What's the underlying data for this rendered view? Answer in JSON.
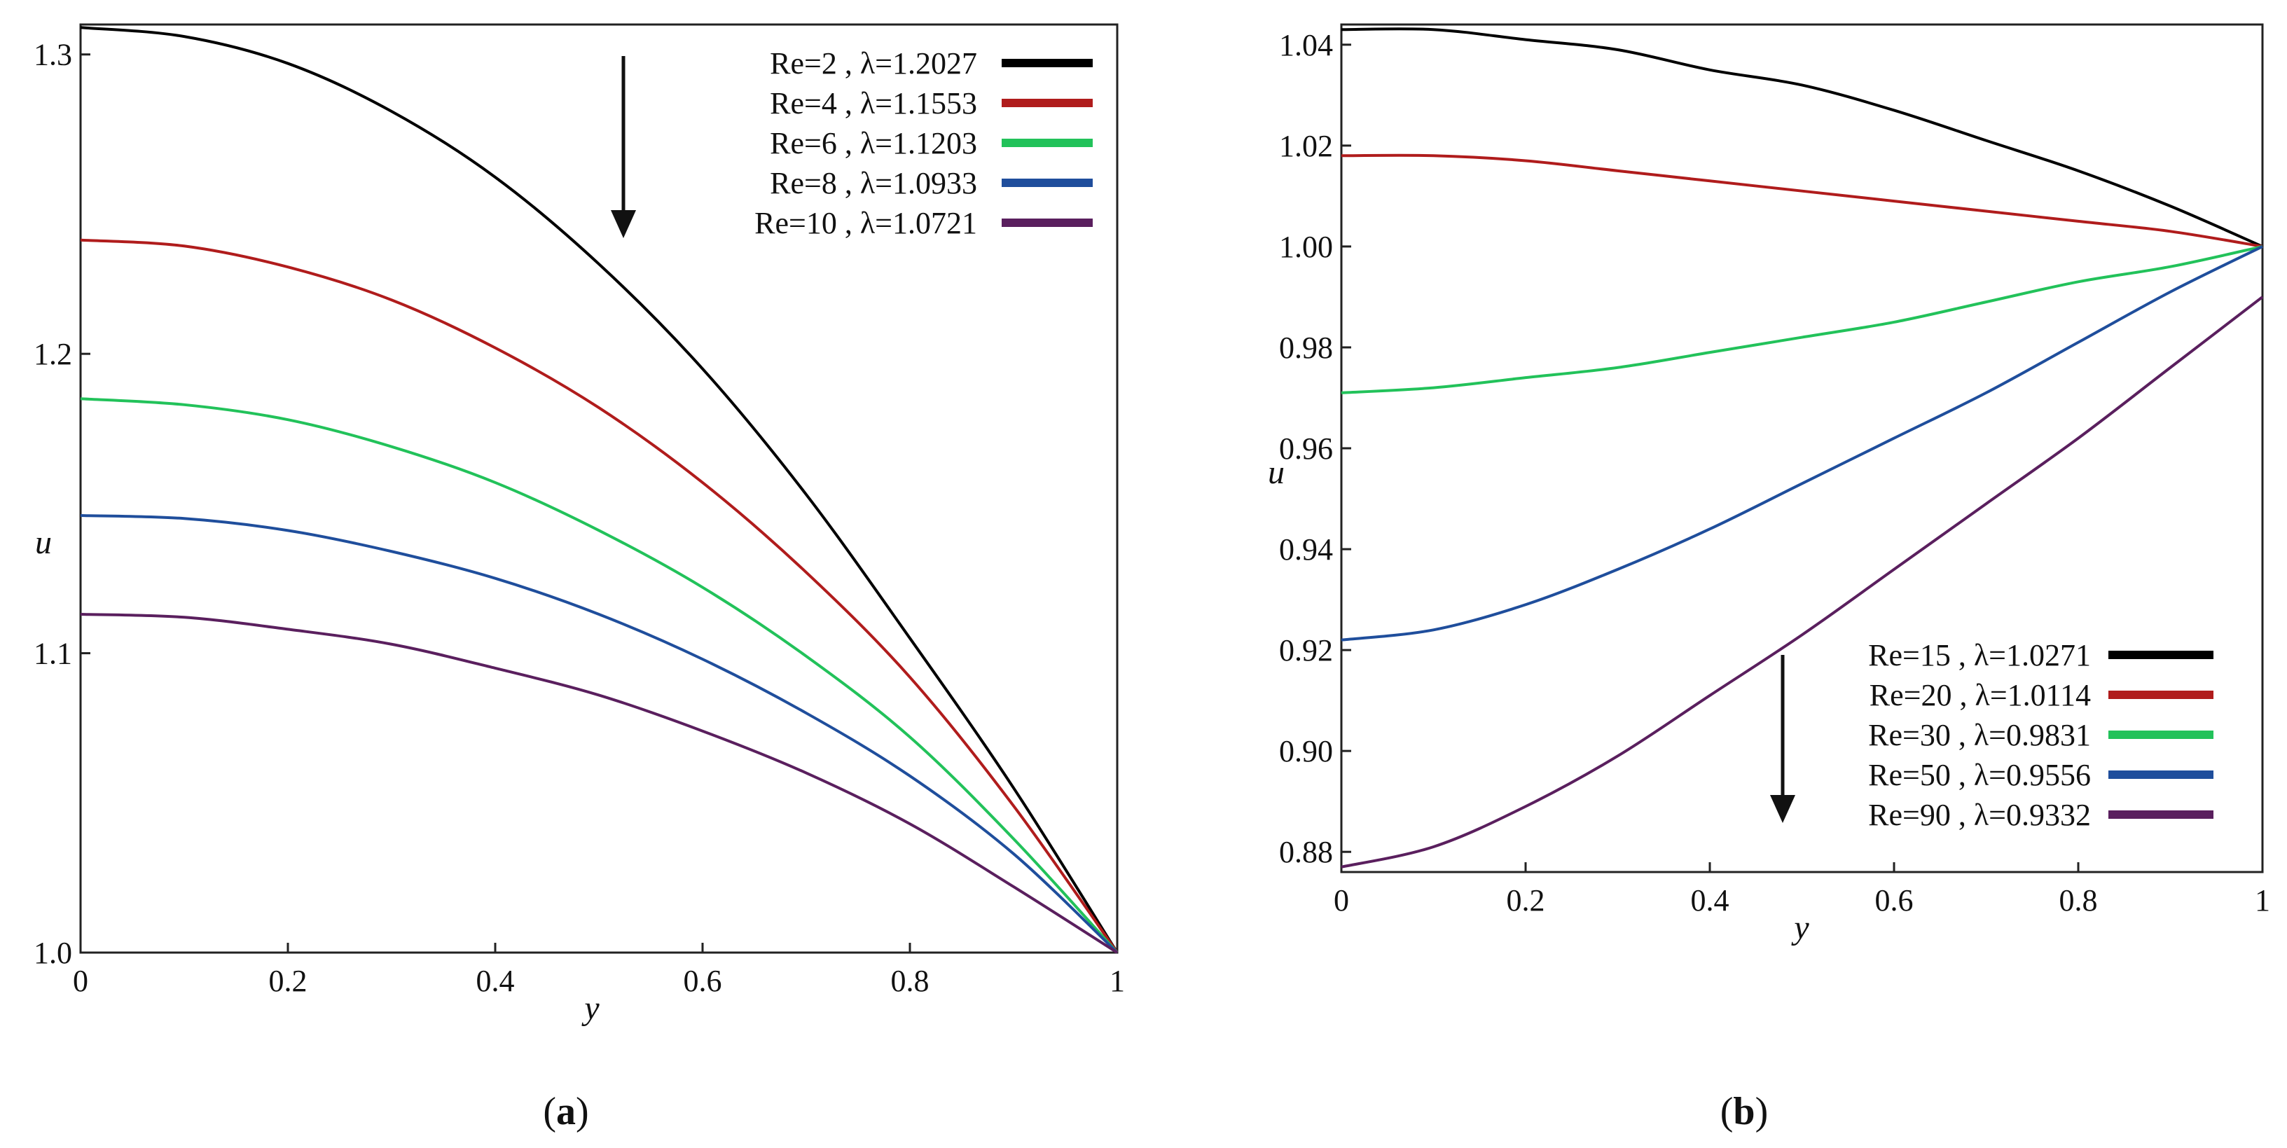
{
  "chart_data": [
    {
      "type": "line",
      "caption_letter": "a",
      "xlabel": "y",
      "ylabel": "u",
      "xlim": [
        0,
        1
      ],
      "ylim": [
        1.0,
        1.31
      ],
      "xticks": [
        {
          "v": 0,
          "label": "0"
        },
        {
          "v": 0.2,
          "label": "0.2"
        },
        {
          "v": 0.4,
          "label": "0.4"
        },
        {
          "v": 0.6,
          "label": "0.6"
        },
        {
          "v": 0.8,
          "label": "0.8"
        },
        {
          "v": 1,
          "label": "1"
        }
      ],
      "yticks": [
        {
          "v": 1.0,
          "label": "1.0"
        },
        {
          "v": 1.1,
          "label": "1.1"
        },
        {
          "v": 1.2,
          "label": "1.2"
        },
        {
          "v": 1.3,
          "label": "1.3"
        }
      ],
      "legend_position": "top-right",
      "arrow": "down",
      "series": [
        {
          "name": "Re=2",
          "lambda": "λ=1.2027",
          "color": "#000000",
          "x": [
            0,
            0.1,
            0.2,
            0.3,
            0.4,
            0.5,
            0.6,
            0.7,
            0.8,
            0.9,
            1.0
          ],
          "values": [
            1.309,
            1.306,
            1.297,
            1.281,
            1.259,
            1.23,
            1.195,
            1.153,
            1.105,
            1.055,
            1.0
          ]
        },
        {
          "name": "Re=4",
          "lambda": "λ=1.1553",
          "color": "#b01c1c",
          "x": [
            0,
            0.1,
            0.2,
            0.3,
            0.4,
            0.5,
            0.6,
            0.7,
            0.8,
            0.9,
            1.0
          ],
          "values": [
            1.238,
            1.236,
            1.229,
            1.218,
            1.202,
            1.182,
            1.157,
            1.127,
            1.092,
            1.049,
            1.0
          ]
        },
        {
          "name": "Re=6",
          "lambda": "λ=1.1203",
          "color": "#22c25a",
          "x": [
            0,
            0.1,
            0.2,
            0.3,
            0.4,
            0.5,
            0.6,
            0.7,
            0.8,
            0.9,
            1.0
          ],
          "values": [
            1.185,
            1.183,
            1.178,
            1.169,
            1.157,
            1.141,
            1.122,
            1.099,
            1.072,
            1.038,
            1.0
          ]
        },
        {
          "name": "Re=8",
          "lambda": "λ=1.0933",
          "color": "#1f4e9c",
          "x": [
            0,
            0.1,
            0.2,
            0.3,
            0.4,
            0.5,
            0.6,
            0.7,
            0.8,
            0.9,
            1.0
          ],
          "values": [
            1.146,
            1.145,
            1.141,
            1.134,
            1.125,
            1.113,
            1.098,
            1.08,
            1.059,
            1.033,
            1.0
          ]
        },
        {
          "name": "Re=10",
          "lambda": "λ=1.0721",
          "color": "#5a1f5e",
          "x": [
            0,
            0.1,
            0.2,
            0.3,
            0.4,
            0.5,
            0.6,
            0.7,
            0.8,
            0.9,
            1.0
          ],
          "values": [
            1.113,
            1.112,
            1.108,
            1.103,
            1.095,
            1.086,
            1.074,
            1.06,
            1.043,
            1.022,
            1.0
          ]
        }
      ]
    },
    {
      "type": "line",
      "caption_letter": "b",
      "xlabel": "y",
      "ylabel": "u",
      "xlim": [
        0,
        1
      ],
      "ylim": [
        0.876,
        1.044
      ],
      "xticks": [
        {
          "v": 0,
          "label": "0"
        },
        {
          "v": 0.2,
          "label": "0.2"
        },
        {
          "v": 0.4,
          "label": "0.4"
        },
        {
          "v": 0.6,
          "label": "0.6"
        },
        {
          "v": 0.8,
          "label": "0.8"
        },
        {
          "v": 1,
          "label": "1"
        }
      ],
      "yticks": [
        {
          "v": 0.88,
          "label": "0.88"
        },
        {
          "v": 0.9,
          "label": "0.90"
        },
        {
          "v": 0.92,
          "label": "0.92"
        },
        {
          "v": 0.94,
          "label": "0.94"
        },
        {
          "v": 0.96,
          "label": "0.96"
        },
        {
          "v": 0.98,
          "label": "0.98"
        },
        {
          "v": 1.0,
          "label": "1.00"
        },
        {
          "v": 1.02,
          "label": "1.02"
        },
        {
          "v": 1.04,
          "label": "1.04"
        }
      ],
      "legend_position": "bottom-right",
      "arrow": "down",
      "series": [
        {
          "name": "Re=15",
          "lambda": "λ=1.0271",
          "color": "#000000",
          "x": [
            0,
            0.1,
            0.2,
            0.3,
            0.4,
            0.5,
            0.6,
            0.7,
            0.8,
            0.9,
            1.0
          ],
          "values": [
            1.043,
            1.043,
            1.041,
            1.039,
            1.035,
            1.032,
            1.027,
            1.021,
            1.015,
            1.008,
            1.0
          ]
        },
        {
          "name": "Re=20",
          "lambda": "λ=1.0114",
          "color": "#b01c1c",
          "x": [
            0,
            0.1,
            0.2,
            0.3,
            0.4,
            0.5,
            0.6,
            0.7,
            0.8,
            0.9,
            1.0
          ],
          "values": [
            1.018,
            1.018,
            1.017,
            1.015,
            1.013,
            1.011,
            1.009,
            1.007,
            1.005,
            1.003,
            1.0
          ]
        },
        {
          "name": "Re=30",
          "lambda": "λ=0.9831",
          "color": "#22c25a",
          "x": [
            0,
            0.1,
            0.2,
            0.3,
            0.4,
            0.5,
            0.6,
            0.7,
            0.8,
            0.9,
            1.0
          ],
          "values": [
            0.971,
            0.972,
            0.974,
            0.976,
            0.979,
            0.982,
            0.985,
            0.989,
            0.993,
            0.996,
            1.0
          ]
        },
        {
          "name": "Re=50",
          "lambda": "λ=0.9556",
          "color": "#1f4e9c",
          "x": [
            0,
            0.1,
            0.2,
            0.3,
            0.4,
            0.5,
            0.6,
            0.7,
            0.8,
            0.9,
            1.0
          ],
          "values": [
            0.922,
            0.924,
            0.929,
            0.936,
            0.944,
            0.953,
            0.962,
            0.971,
            0.981,
            0.991,
            1.0
          ]
        },
        {
          "name": "Re=90",
          "lambda": "λ=0.9332",
          "color": "#5a1f5e",
          "x": [
            0,
            0.1,
            0.2,
            0.3,
            0.4,
            0.5,
            0.6,
            0.7,
            0.8,
            0.9,
            1.0
          ],
          "values": [
            0.877,
            0.881,
            0.889,
            0.899,
            0.911,
            0.923,
            0.936,
            0.949,
            0.962,
            0.976,
            0.99
          ]
        }
      ]
    }
  ]
}
